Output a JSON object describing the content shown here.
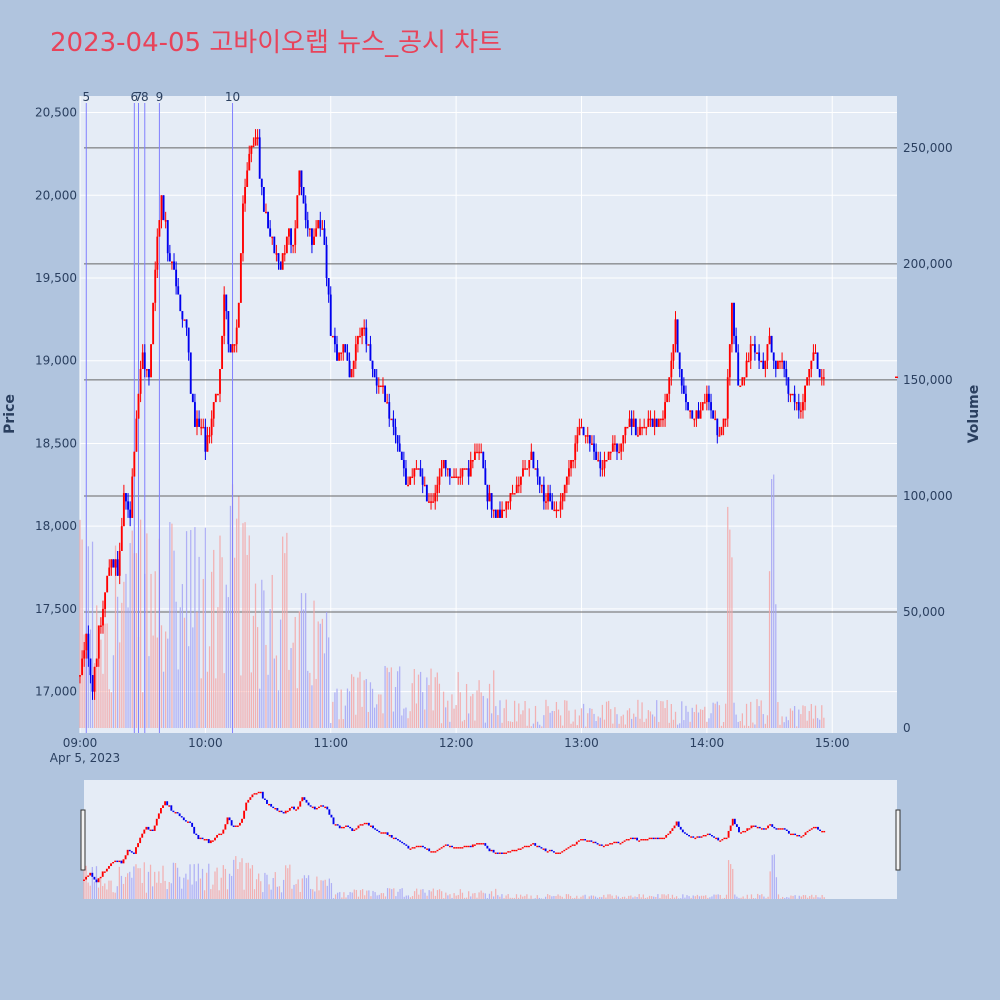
{
  "title": "2023-04-05 고바이오랩 뉴스_공시 차트",
  "colors": {
    "background": "#b0c4de",
    "plot_bg": "#e5ecf6",
    "title": "#e8435a",
    "up": "#ff0000",
    "down": "#0000ee",
    "up_volume": "#f4a6a6",
    "down_volume": "#a6a6f4",
    "hline": "#666666",
    "news_line": "#8080ff"
  },
  "chart_data": {
    "type": "candlestick",
    "title": "2023-04-05 고바이오랩 뉴스_공시 차트",
    "ylabel": "Price",
    "y2label": "Volume",
    "ylim": [
      16750,
      20600
    ],
    "y2lim": [
      0,
      262000
    ],
    "xlim": [
      "09:00",
      "15:31"
    ],
    "grid": true,
    "price_ticks": [
      "17,000",
      "17,500",
      "18,000",
      "18,500",
      "19,000",
      "19,500",
      "20,000",
      "20,500"
    ],
    "price_tick_values": [
      17000,
      17500,
      18000,
      18500,
      19000,
      19500,
      20000,
      20500
    ],
    "volume_ticks": [
      "0",
      "50,000",
      "100,000",
      "150,000",
      "200,000",
      "250,000"
    ],
    "volume_tick_values": [
      0,
      50000,
      100000,
      150000,
      200000,
      250000
    ],
    "time_ticks": [
      "09:00",
      "10:00",
      "11:00",
      "12:00",
      "13:00",
      "14:00",
      "15:00"
    ],
    "date_label": "Apr 5, 2023",
    "horizontal_levels_volume": [
      250000,
      200000,
      150000,
      100000,
      50000
    ],
    "news_markers": [
      {
        "label": "5",
        "time": "09:03"
      },
      {
        "label": "6",
        "time": "09:26"
      },
      {
        "label": "7",
        "time": "09:28"
      },
      {
        "label": "8",
        "time": "09:31"
      },
      {
        "label": "9",
        "time": "09:38"
      },
      {
        "label": "10",
        "time": "10:13"
      }
    ],
    "price_path": [
      [
        "09:00",
        17100
      ],
      [
        "09:03",
        17300
      ],
      [
        "09:06",
        17050
      ],
      [
        "09:09",
        17350
      ],
      [
        "09:12",
        17600
      ],
      [
        "09:15",
        17850
      ],
      [
        "09:18",
        17700
      ],
      [
        "09:21",
        18150
      ],
      [
        "09:24",
        18100
      ],
      [
        "09:27",
        18700
      ],
      [
        "09:30",
        19050
      ],
      [
        "09:33",
        18850
      ],
      [
        "09:36",
        19600
      ],
      [
        "09:39",
        20000
      ],
      [
        "09:42",
        19700
      ],
      [
        "09:45",
        19600
      ],
      [
        "09:48",
        19250
      ],
      [
        "09:51",
        19200
      ],
      [
        "09:54",
        18700
      ],
      [
        "09:57",
        18600
      ],
      [
        "10:00",
        18500
      ],
      [
        "10:03",
        18650
      ],
      [
        "10:06",
        18850
      ],
      [
        "10:09",
        19400
      ],
      [
        "10:12",
        19000
      ],
      [
        "10:15",
        19150
      ],
      [
        "10:18",
        19900
      ],
      [
        "10:21",
        20250
      ],
      [
        "10:24",
        20400
      ],
      [
        "10:27",
        20000
      ],
      [
        "10:30",
        19850
      ],
      [
        "10:33",
        19650
      ],
      [
        "10:36",
        19600
      ],
      [
        "10:39",
        19800
      ],
      [
        "10:42",
        19700
      ],
      [
        "10:45",
        20150
      ],
      [
        "10:48",
        19850
      ],
      [
        "10:51",
        19750
      ],
      [
        "10:54",
        19850
      ],
      [
        "10:57",
        19700
      ],
      [
        "11:00",
        19200
      ],
      [
        "11:03",
        19050
      ],
      [
        "11:06",
        19100
      ],
      [
        "11:09",
        18900
      ],
      [
        "11:12",
        19100
      ],
      [
        "11:15",
        19200
      ],
      [
        "11:18",
        19100
      ],
      [
        "11:21",
        18900
      ],
      [
        "11:24",
        18850
      ],
      [
        "11:27",
        18700
      ],
      [
        "11:30",
        18600
      ],
      [
        "11:33",
        18450
      ],
      [
        "11:36",
        18250
      ],
      [
        "11:39",
        18300
      ],
      [
        "11:42",
        18350
      ],
      [
        "11:45",
        18200
      ],
      [
        "11:48",
        18150
      ],
      [
        "11:51",
        18250
      ],
      [
        "11:54",
        18400
      ],
      [
        "11:57",
        18300
      ],
      [
        "12:00",
        18300
      ],
      [
        "12:03",
        18350
      ],
      [
        "12:06",
        18350
      ],
      [
        "12:09",
        18450
      ],
      [
        "12:12",
        18450
      ],
      [
        "12:15",
        18200
      ],
      [
        "12:18",
        18100
      ],
      [
        "12:21",
        18050
      ],
      [
        "12:24",
        18150
      ],
      [
        "12:27",
        18200
      ],
      [
        "12:30",
        18250
      ],
      [
        "12:33",
        18350
      ],
      [
        "12:36",
        18400
      ],
      [
        "12:39",
        18300
      ],
      [
        "12:42",
        18200
      ],
      [
        "12:45",
        18150
      ],
      [
        "12:48",
        18100
      ],
      [
        "12:51",
        18200
      ],
      [
        "12:54",
        18350
      ],
      [
        "12:57",
        18500
      ],
      [
        "13:00",
        18600
      ],
      [
        "13:03",
        18550
      ],
      [
        "13:06",
        18450
      ],
      [
        "13:09",
        18350
      ],
      [
        "13:12",
        18400
      ],
      [
        "13:15",
        18500
      ],
      [
        "13:18",
        18450
      ],
      [
        "13:21",
        18600
      ],
      [
        "13:24",
        18650
      ],
      [
        "13:27",
        18550
      ],
      [
        "13:30",
        18600
      ],
      [
        "13:33",
        18650
      ],
      [
        "13:36",
        18600
      ],
      [
        "13:39",
        18700
      ],
      [
        "13:42",
        18900
      ],
      [
        "13:45",
        19200
      ],
      [
        "13:48",
        18850
      ],
      [
        "13:51",
        18700
      ],
      [
        "13:54",
        18650
      ],
      [
        "13:57",
        18700
      ],
      [
        "14:00",
        18800
      ],
      [
        "14:03",
        18650
      ],
      [
        "14:06",
        18550
      ],
      [
        "14:09",
        18700
      ],
      [
        "14:12",
        19350
      ],
      [
        "14:15",
        18850
      ],
      [
        "14:18",
        18900
      ],
      [
        "14:21",
        19100
      ],
      [
        "14:24",
        19000
      ],
      [
        "14:27",
        18950
      ],
      [
        "14:30",
        19150
      ],
      [
        "14:33",
        18950
      ],
      [
        "14:36",
        19000
      ],
      [
        "14:39",
        18800
      ],
      [
        "14:42",
        18750
      ],
      [
        "14:45",
        18700
      ],
      [
        "14:48",
        18900
      ],
      [
        "14:51",
        19050
      ],
      [
        "14:54",
        18900
      ]
    ],
    "last_price": 18900
  }
}
